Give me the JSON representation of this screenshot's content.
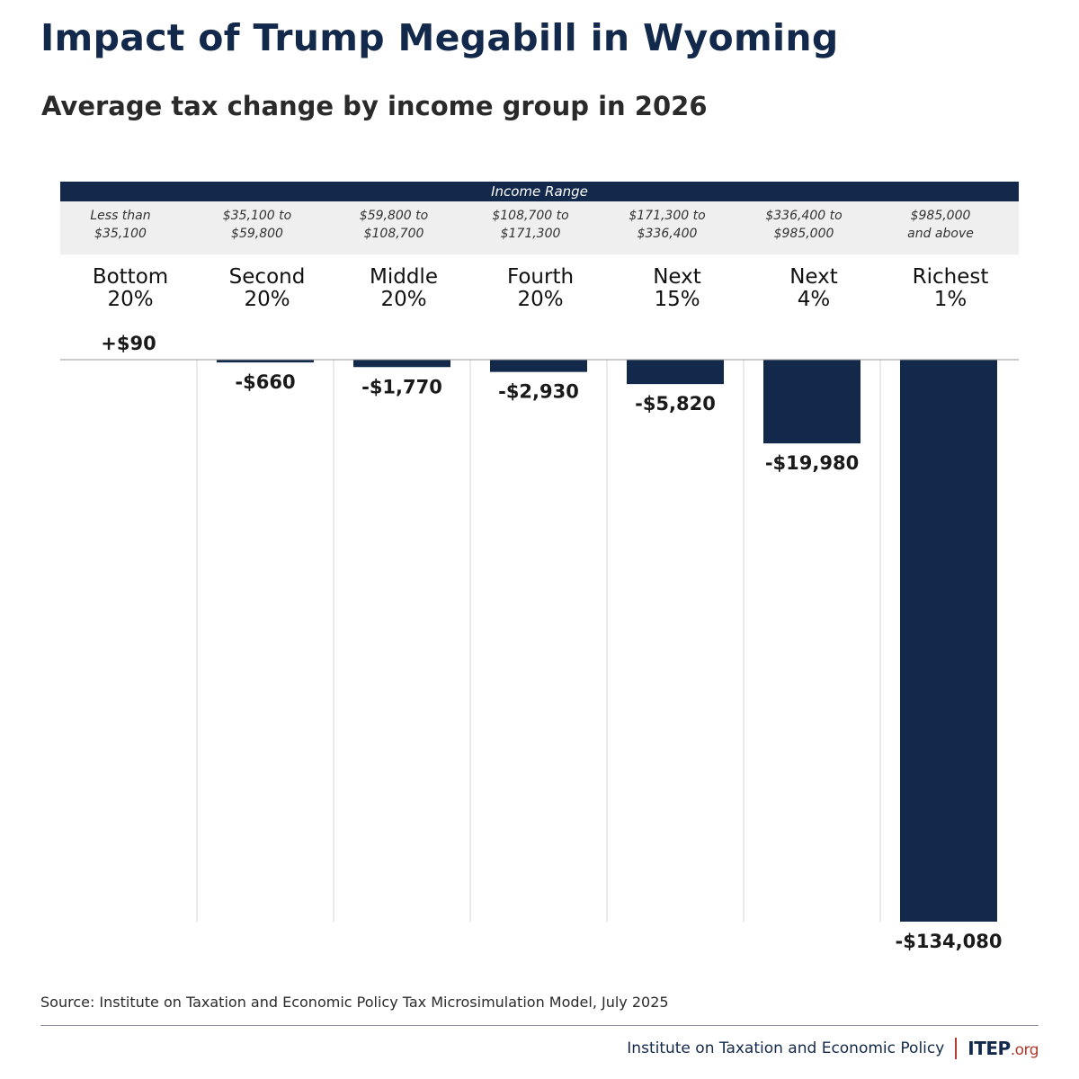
{
  "title": "Impact of Trump Megabill in Wyoming",
  "subtitle": "Average tax change by income group in 2026",
  "range_header": "Income Range",
  "groups": [
    {
      "range_line1": "Less than",
      "range_line2": "$35,100",
      "label_line1": "Bottom",
      "label_line2": "20%",
      "value_label": "+$90"
    },
    {
      "range_line1": "$35,100 to",
      "range_line2": "$59,800",
      "label_line1": "Second",
      "label_line2": "20%",
      "value_label": "-$660"
    },
    {
      "range_line1": "$59,800 to",
      "range_line2": "$108,700",
      "label_line1": "Middle",
      "label_line2": "20%",
      "value_label": "-$1,770"
    },
    {
      "range_line1": "$108,700 to",
      "range_line2": "$171,300",
      "label_line1": "Fourth",
      "label_line2": "20%",
      "value_label": "-$2,930"
    },
    {
      "range_line1": "$171,300 to",
      "range_line2": "$336,400",
      "label_line1": "Next",
      "label_line2": "15%",
      "value_label": "-$5,820"
    },
    {
      "range_line1": "$336,400 to",
      "range_line2": "$985,000",
      "label_line1": "Next",
      "label_line2": "4%",
      "value_label": "-$19,980"
    },
    {
      "range_line1": "$985,000",
      "range_line2": "and above",
      "label_line1": "Richest",
      "label_line2": "1%",
      "value_label": "-$134,080"
    }
  ],
  "source": "Source: Institute on Taxation and Economic Policy Tax Microsimulation Model, July 2025",
  "footer": {
    "org": "Institute on Taxation and Economic Policy",
    "logo": "ITEP",
    "logo_suffix": ".org"
  },
  "colors": {
    "bar": "#13294b",
    "header": "#13294b",
    "accent": "#b03a2e",
    "range_band": "#efefef",
    "gridline": "#d4d4d4"
  },
  "chart_data": {
    "type": "bar",
    "categories": [
      "Bottom 20%",
      "Second 20%",
      "Middle 20%",
      "Fourth 20%",
      "Next 15%",
      "Next 4%",
      "Richest 1%"
    ],
    "values": [
      90,
      -660,
      -1770,
      -2930,
      -5820,
      -19980,
      -134080
    ],
    "value_labels": [
      "+$90",
      "-$660",
      "-$1,770",
      "-$2,930",
      "-$5,820",
      "-$19,980",
      "-$134,080"
    ],
    "title": "Impact of Trump Megabill in Wyoming",
    "subtitle": "Average tax change by income group in 2026",
    "xlabel": "Income Range",
    "ylabel": "",
    "ylim": [
      -134080,
      0
    ],
    "grid": false
  }
}
